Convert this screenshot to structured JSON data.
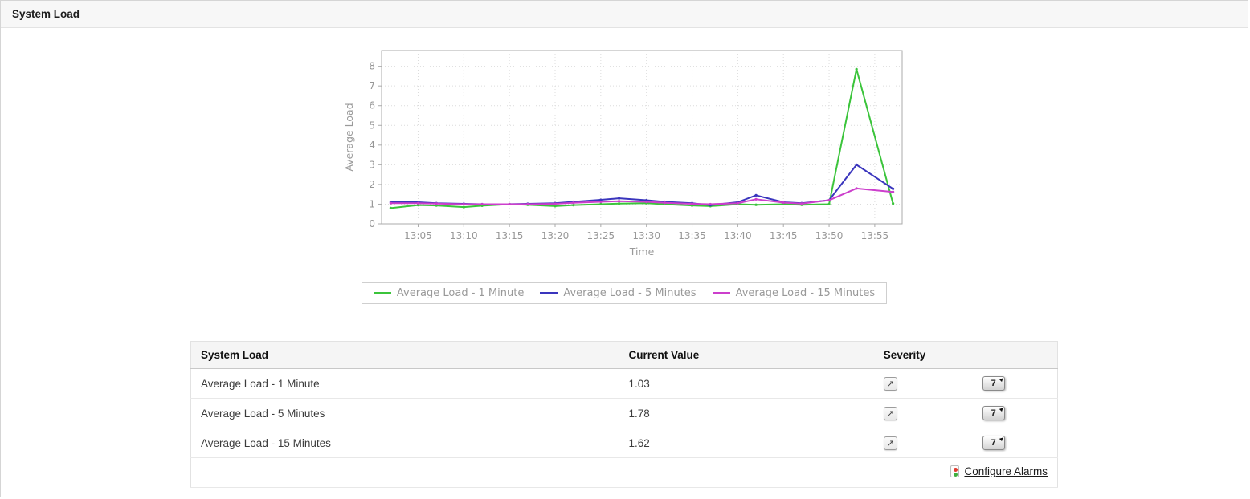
{
  "header": {
    "title": "System Load"
  },
  "chart_data": {
    "type": "line",
    "title": "",
    "xlabel": "Time",
    "ylabel": "Average Load",
    "ylim": [
      0,
      8
    ],
    "yticks": [
      0,
      1,
      2,
      3,
      4,
      5,
      6,
      7,
      8
    ],
    "xticks": [
      "13:05",
      "13:10",
      "13:15",
      "13:20",
      "13:25",
      "13:30",
      "13:35",
      "13:40",
      "13:45",
      "13:50",
      "13:55"
    ],
    "xrange": [
      "13:01",
      "13:58"
    ],
    "grid": true,
    "legend_position": "bottom",
    "x": [
      "13:02",
      "13:05",
      "13:07",
      "13:10",
      "13:12",
      "13:15",
      "13:17",
      "13:20",
      "13:22",
      "13:25",
      "13:27",
      "13:30",
      "13:32",
      "13:35",
      "13:37",
      "13:40",
      "13:42",
      "13:45",
      "13:47",
      "13:50",
      "13:53",
      "13:57"
    ],
    "series": [
      {
        "name": "Average Load - 1 Minute",
        "color": "#3bc43b",
        "values": [
          0.8,
          0.95,
          0.93,
          0.85,
          0.92,
          1.0,
          0.97,
          0.9,
          0.95,
          1.0,
          1.03,
          1.05,
          1.0,
          0.93,
          0.9,
          1.0,
          0.97,
          1.0,
          0.97,
          1.0,
          7.85,
          1.03
        ]
      },
      {
        "name": "Average Load - 5 Minutes",
        "color": "#3a35bd",
        "values": [
          1.1,
          1.1,
          1.05,
          1.02,
          1.0,
          1.0,
          1.02,
          1.05,
          1.12,
          1.22,
          1.3,
          1.2,
          1.12,
          1.05,
          0.95,
          1.1,
          1.45,
          1.1,
          1.05,
          1.2,
          3.0,
          1.78
        ]
      },
      {
        "name": "Average Load - 15 Minutes",
        "color": "#cc3fcc",
        "values": [
          1.05,
          1.05,
          1.03,
          1.0,
          1.0,
          1.0,
          1.0,
          1.02,
          1.07,
          1.12,
          1.15,
          1.12,
          1.07,
          1.02,
          1.0,
          1.05,
          1.25,
          1.08,
          1.03,
          1.2,
          1.8,
          1.62
        ]
      }
    ]
  },
  "table": {
    "headers": [
      "System Load",
      "Current Value",
      "Severity"
    ],
    "rows": [
      {
        "name": "Average Load - 1 Minute",
        "value": "1.03",
        "severity": "clear",
        "history_label": "7"
      },
      {
        "name": "Average Load - 5 Minutes",
        "value": "1.78",
        "severity": "clear",
        "history_label": "7"
      },
      {
        "name": "Average Load - 15 Minutes",
        "value": "1.62",
        "severity": "clear",
        "history_label": "7"
      }
    ],
    "footer": {
      "configure_alarms_label": "Configure Alarms"
    }
  },
  "icons": {
    "severity_clear_glyph": "↗",
    "history_arrow_glyph": "▸"
  },
  "colors": {
    "alarm_red": "#e03b30",
    "alarm_green": "#3faf3f"
  }
}
